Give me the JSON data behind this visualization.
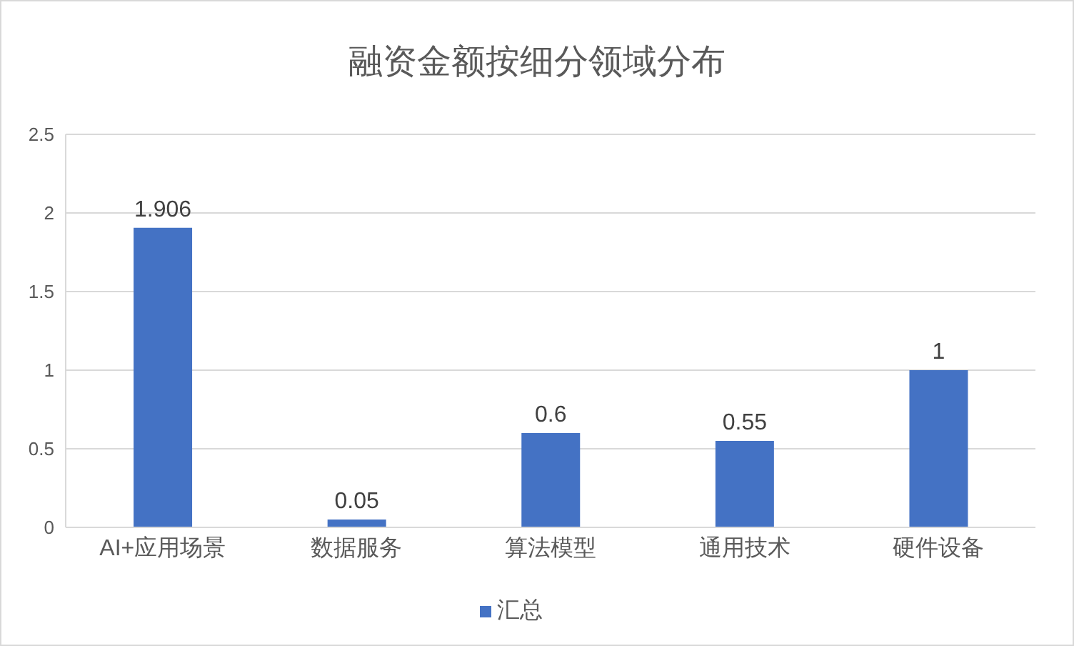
{
  "chart_data": {
    "type": "bar",
    "title": "融资金额按细分领域分布",
    "categories": [
      "AI+应用场景",
      "数据服务",
      "算法模型",
      "通用技术",
      "硬件设备"
    ],
    "series": [
      {
        "name": "汇总",
        "color": "#4472c4",
        "values": [
          1.906,
          0.05,
          0.6,
          0.55,
          1
        ]
      }
    ],
    "ylim": [
      0,
      2.5
    ],
    "yticks": [
      0,
      0.5,
      1,
      1.5,
      2,
      2.5
    ],
    "grid": "y",
    "legend": "bottom",
    "data_labels": true
  }
}
